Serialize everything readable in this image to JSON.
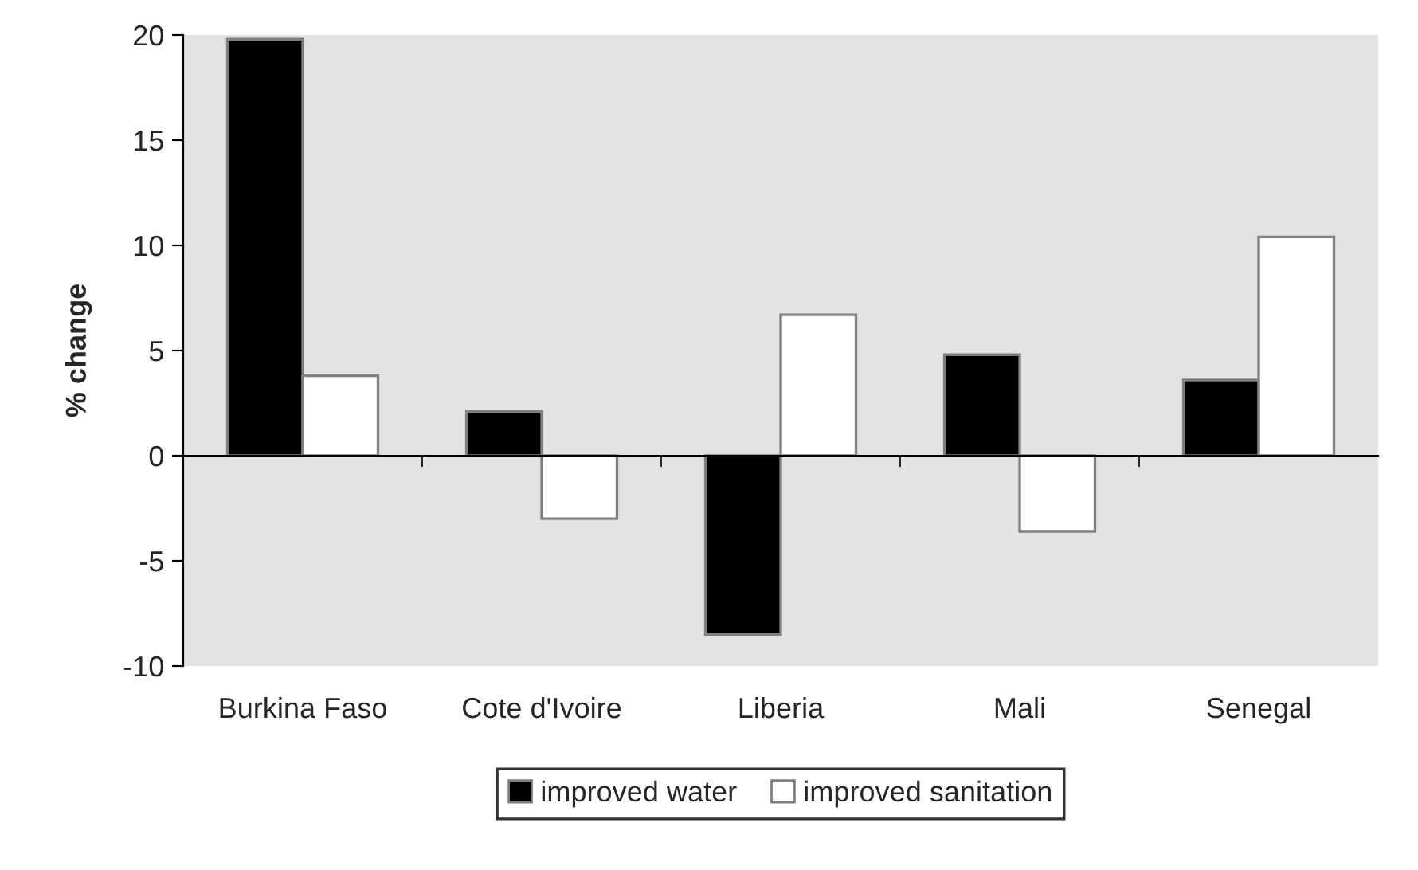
{
  "chart_data": {
    "type": "bar",
    "ylabel": "% change",
    "categories": [
      "Burkina Faso",
      "Cote d'Ivoire",
      "Liberia",
      "Mali",
      "Senegal"
    ],
    "series": [
      {
        "name": "improved water",
        "color": "#000000",
        "values": [
          19.8,
          2.1,
          -8.5,
          4.8,
          3.6
        ]
      },
      {
        "name": "improved sanitation",
        "color": "#ffffff",
        "values": [
          3.8,
          -3.0,
          6.7,
          -3.6,
          10.4
        ]
      }
    ],
    "ylim": [
      -10,
      20
    ],
    "yticks": [
      -10,
      -5,
      0,
      5,
      10,
      15,
      20
    ],
    "legend": "bottom"
  }
}
